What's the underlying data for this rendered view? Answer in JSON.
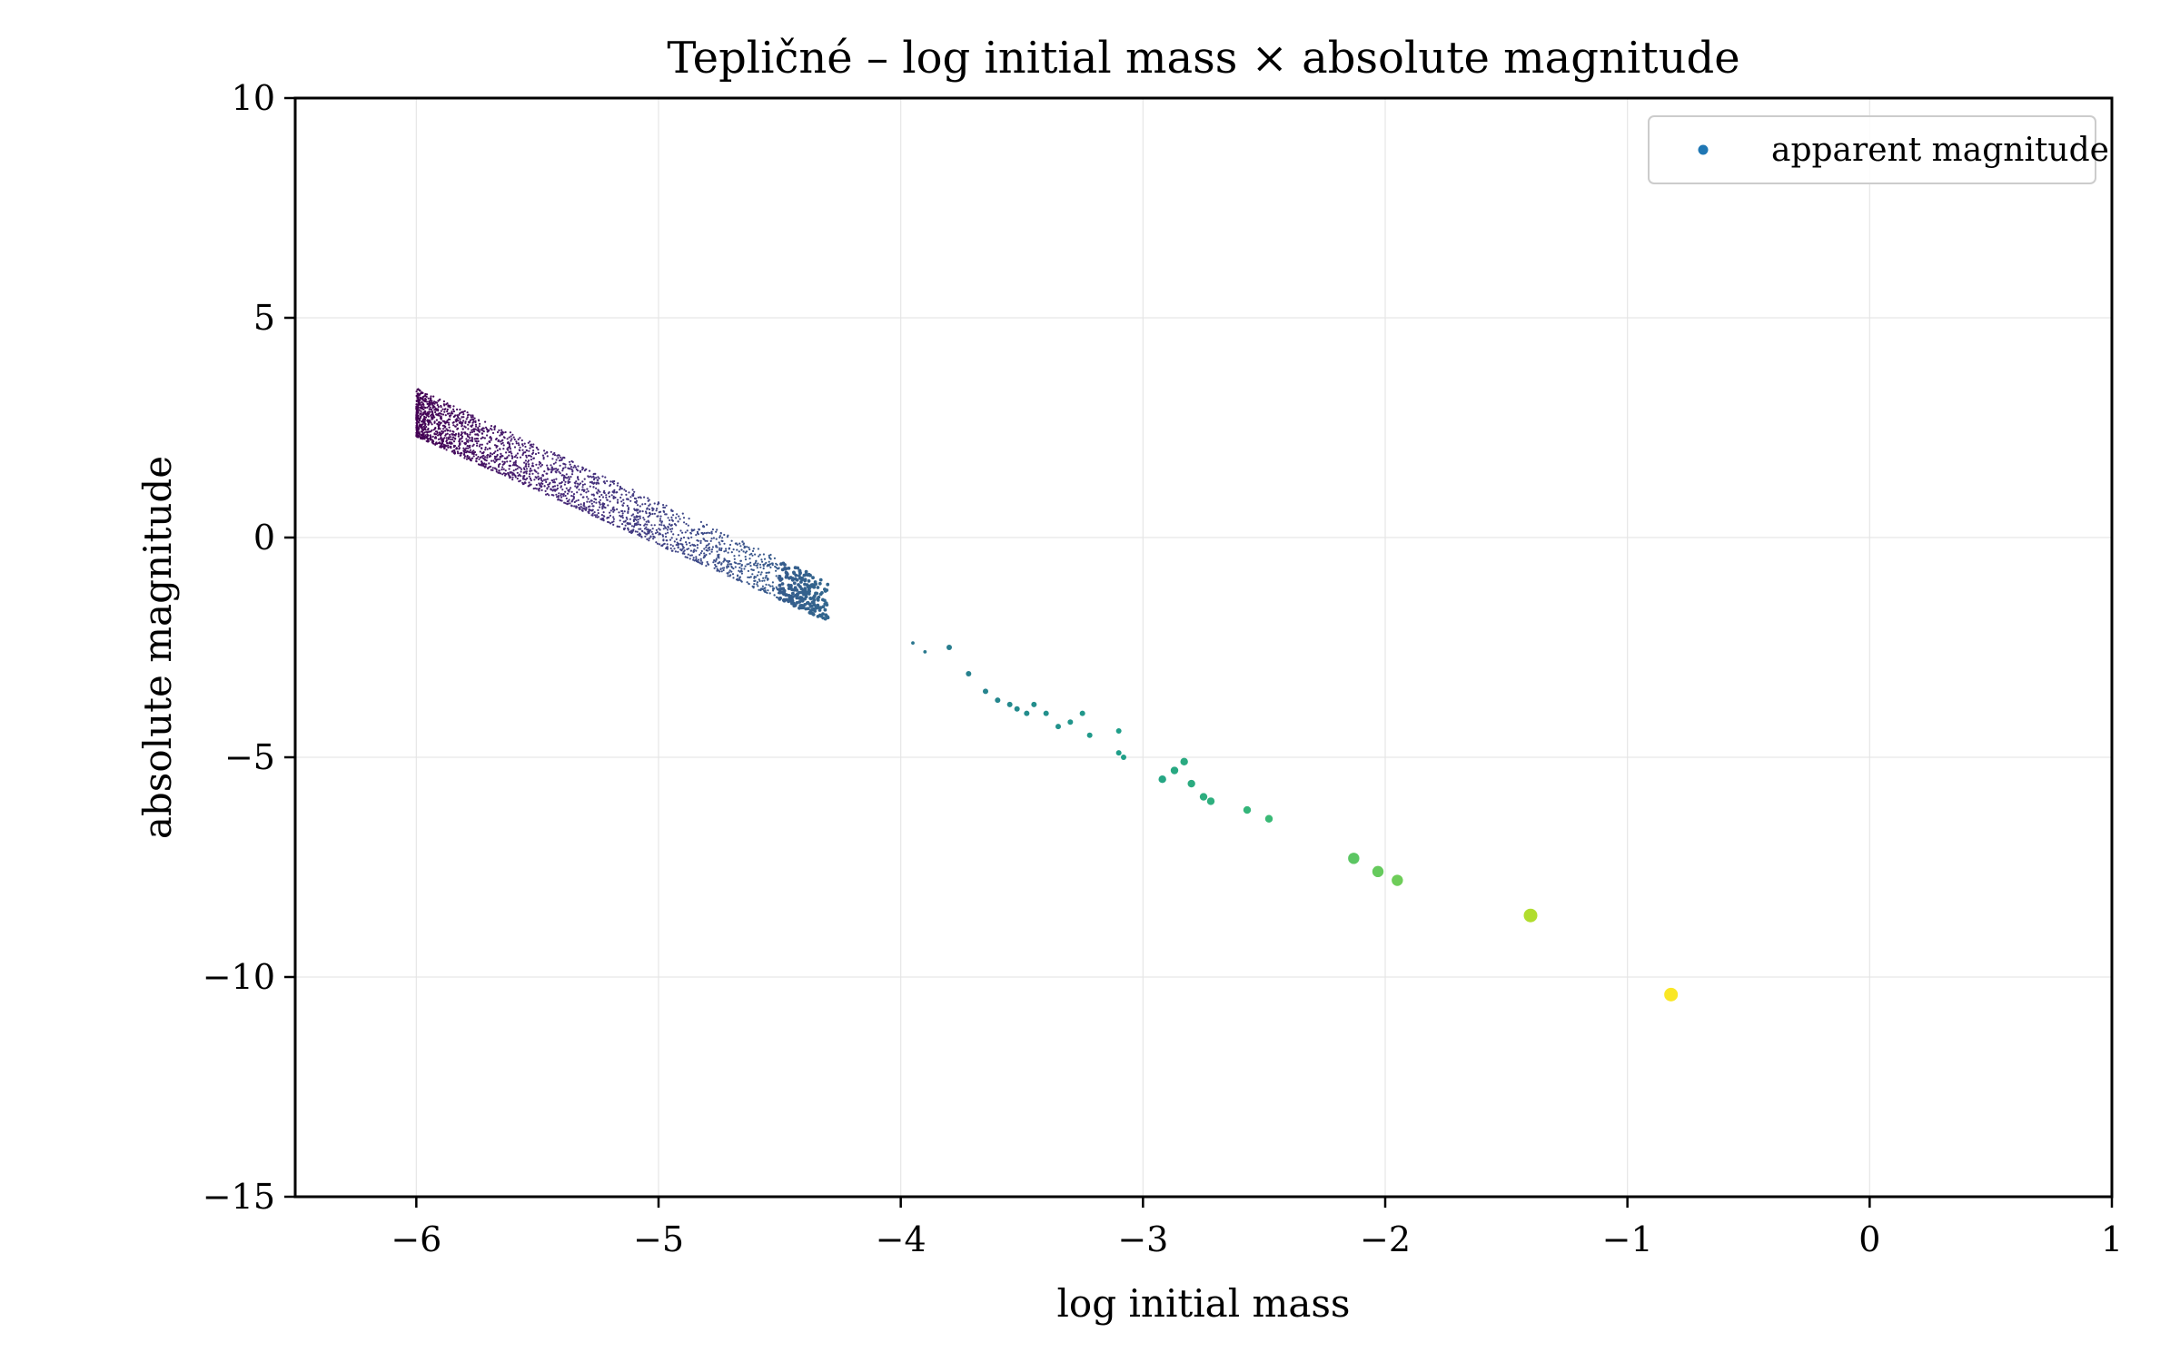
{
  "chart_data": {
    "type": "scatter",
    "title": "Tepličné – log initial mass × absolute magnitude",
    "xlabel": "log initial mass",
    "ylabel": "absolute magnitude",
    "xlim": [
      -6.5,
      1
    ],
    "ylim": [
      -15,
      10
    ],
    "x_ticks": [
      -6,
      -5,
      -4,
      -3,
      -2,
      -1,
      0,
      1
    ],
    "y_ticks": [
      -15,
      -10,
      -5,
      0,
      5,
      10
    ],
    "x_tick_labels": [
      "−6",
      "−5",
      "−4",
      "−3",
      "−2",
      "−1",
      "0",
      "1"
    ],
    "y_tick_labels": [
      "−15",
      "−10",
      "−5",
      "0",
      "5",
      "10"
    ],
    "grid": true,
    "legend": {
      "entries": [
        "apparent magnitude"
      ],
      "placement": "top-right"
    },
    "colormap": "viridis",
    "colors": {
      "legend_marker": "#1f77b4"
    },
    "series": [
      {
        "name": "apparent magnitude",
        "dense_band": {
          "x_range": [
            -6.0,
            -4.3
          ],
          "y_at_x_min": [
            2.3,
            3.4
          ],
          "y_at_x_max": [
            -1.9,
            -1.0
          ]
        },
        "points": [
          {
            "x": -3.95,
            "y": -2.4
          },
          {
            "x": -3.9,
            "y": -2.6
          },
          {
            "x": -3.8,
            "y": -2.5
          },
          {
            "x": -3.72,
            "y": -3.1
          },
          {
            "x": -3.65,
            "y": -3.5
          },
          {
            "x": -3.6,
            "y": -3.7
          },
          {
            "x": -3.55,
            "y": -3.8
          },
          {
            "x": -3.52,
            "y": -3.9
          },
          {
            "x": -3.48,
            "y": -4.0
          },
          {
            "x": -3.45,
            "y": -3.8
          },
          {
            "x": -3.4,
            "y": -4.0
          },
          {
            "x": -3.35,
            "y": -4.3
          },
          {
            "x": -3.3,
            "y": -4.2
          },
          {
            "x": -3.25,
            "y": -4.0
          },
          {
            "x": -3.22,
            "y": -4.5
          },
          {
            "x": -3.1,
            "y": -4.4
          },
          {
            "x": -3.1,
            "y": -4.9
          },
          {
            "x": -3.08,
            "y": -5.0
          },
          {
            "x": -2.92,
            "y": -5.5
          },
          {
            "x": -2.87,
            "y": -5.3
          },
          {
            "x": -2.83,
            "y": -5.1
          },
          {
            "x": -2.8,
            "y": -5.6
          },
          {
            "x": -2.75,
            "y": -5.9
          },
          {
            "x": -2.72,
            "y": -6.0
          },
          {
            "x": -2.57,
            "y": -6.2
          },
          {
            "x": -2.48,
            "y": -6.4
          },
          {
            "x": -2.13,
            "y": -7.3
          },
          {
            "x": -2.03,
            "y": -7.6
          },
          {
            "x": -1.95,
            "y": -7.8
          },
          {
            "x": -1.4,
            "y": -8.6
          },
          {
            "x": -0.82,
            "y": -10.4
          }
        ]
      }
    ]
  }
}
